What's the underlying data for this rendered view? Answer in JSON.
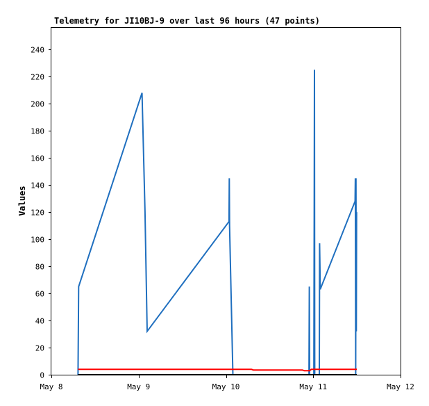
{
  "chart_data": {
    "type": "line",
    "title": "Telemetry for JI10BJ-9 over last 96 hours (47 points)",
    "xlabel": "",
    "ylabel": "Values",
    "ylim": [
      0,
      256
    ],
    "xlim": [
      "2024-05-08T00:00",
      "2024-05-12T00:00"
    ],
    "x_ticks": [
      "May 8",
      "May 9",
      "May 10",
      "May 11",
      "May 12"
    ],
    "y_ticks": [
      0,
      20,
      40,
      60,
      80,
      100,
      120,
      140,
      160,
      180,
      200,
      220,
      240
    ],
    "grid": false,
    "legend": "none",
    "series": [
      {
        "color": "#1f6fbf",
        "points": [
          [
            "2024-05-08T07:20",
            0
          ],
          [
            "2024-05-08T07:30",
            65
          ],
          [
            "2024-05-09T00:55",
            208
          ],
          [
            "2024-05-09T01:45",
            120
          ],
          [
            "2024-05-09T02:20",
            32
          ],
          [
            "2024-05-10T00:50",
            113
          ],
          [
            "2024-05-10T00:55",
            145
          ],
          [
            "2024-05-10T01:00",
            110
          ],
          [
            "2024-05-10T01:55",
            0
          ],
          [
            "2024-05-10T22:50",
            0
          ],
          [
            "2024-05-10T22:55",
            65
          ],
          [
            "2024-05-10T23:00",
            0
          ],
          [
            "2024-05-11T00:10",
            0
          ],
          [
            "2024-05-11T00:15",
            113
          ],
          [
            "2024-05-11T00:20",
            225
          ],
          [
            "2024-05-11T00:25",
            0
          ],
          [
            "2024-05-11T01:40",
            0
          ],
          [
            "2024-05-11T01:45",
            97
          ],
          [
            "2024-05-11T01:50",
            80
          ],
          [
            "2024-05-11T01:55",
            63
          ],
          [
            "2024-05-11T11:30",
            128
          ],
          [
            "2024-05-11T11:35",
            145
          ],
          [
            "2024-05-11T11:40",
            0
          ],
          [
            "2024-05-11T11:45",
            145
          ],
          [
            "2024-05-11T11:50",
            32
          ],
          [
            "2024-05-11T11:55",
            120
          ]
        ]
      },
      {
        "color": "#ff0000",
        "points": [
          [
            "2024-05-08T07:20",
            4
          ],
          [
            "2024-05-10T07:00",
            4
          ],
          [
            "2024-05-10T07:30",
            3.5
          ],
          [
            "2024-05-10T21:00",
            3.5
          ],
          [
            "2024-05-10T21:30",
            3
          ],
          [
            "2024-05-10T23:00",
            3
          ],
          [
            "2024-05-10T23:30",
            4
          ],
          [
            "2024-05-11T12:00",
            4
          ]
        ]
      },
      {
        "color": "#000000",
        "points": [
          [
            "2024-05-08T07:20",
            0
          ],
          [
            "2024-05-11T12:00",
            0
          ]
        ]
      }
    ]
  }
}
